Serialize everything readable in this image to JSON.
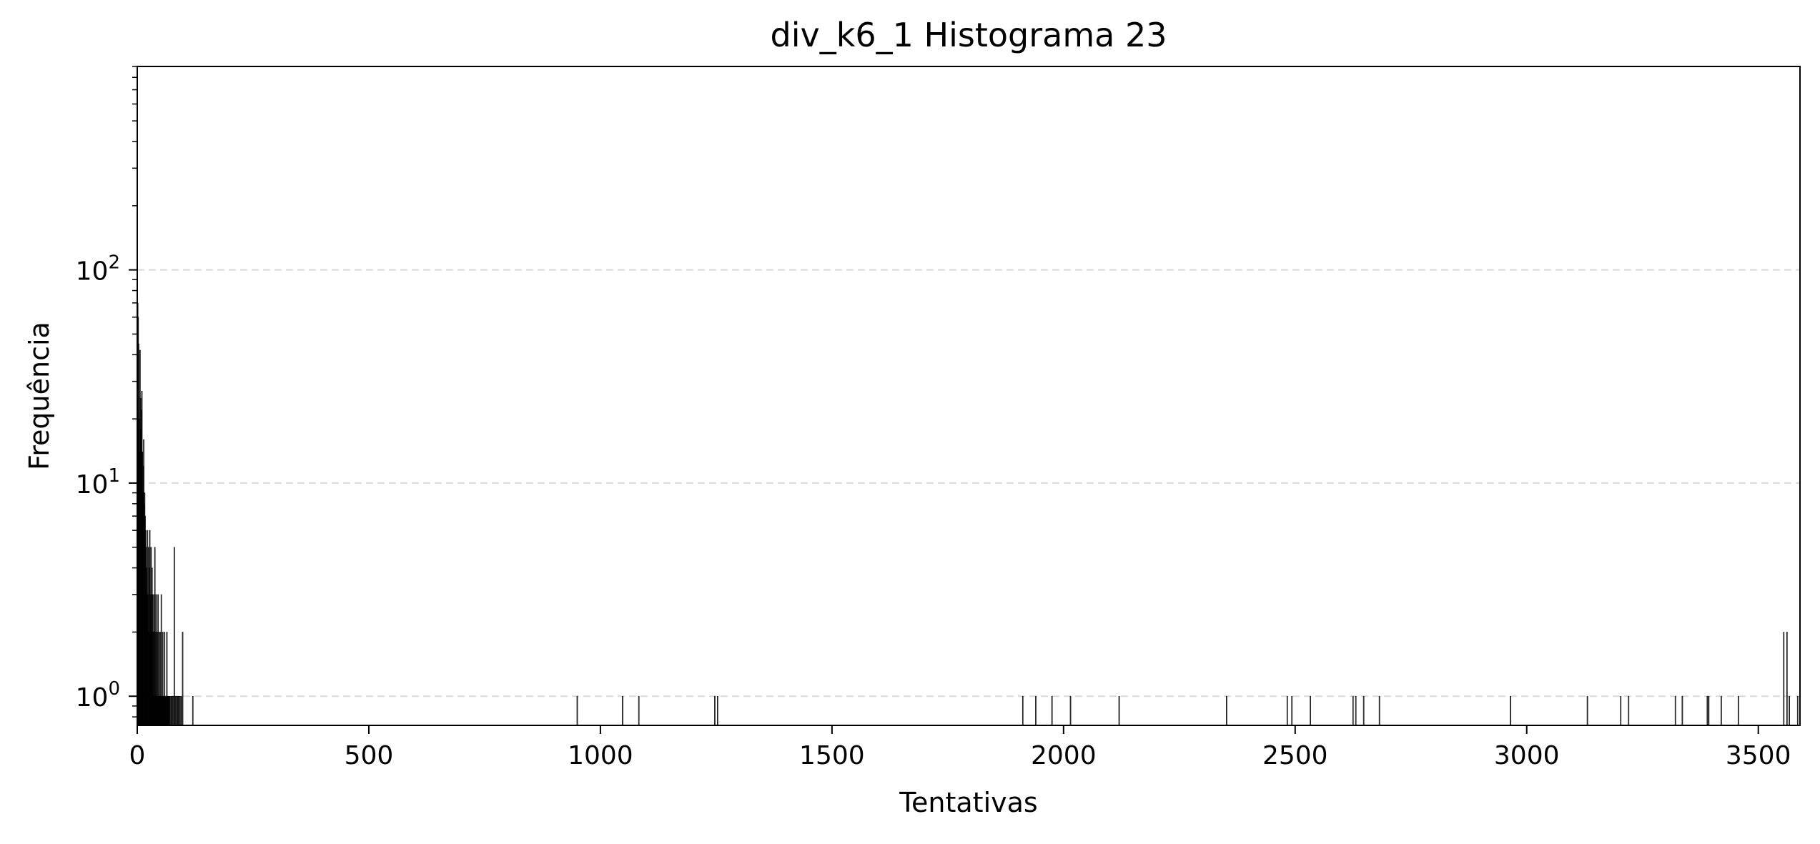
{
  "chart_data": {
    "type": "bar",
    "title": "div_k6_1 Histograma 23",
    "xlabel": "Tentativas",
    "ylabel": "Frequência",
    "xlim": [
      0,
      3590
    ],
    "ylim": [
      0.73,
      900
    ],
    "y_scale": "log",
    "grid": {
      "axis": "y",
      "style": "dashed",
      "color": "#d9d9d9"
    },
    "x_ticks": [
      {
        "value": 0,
        "label": "0"
      },
      {
        "value": 500,
        "label": "500"
      },
      {
        "value": 1000,
        "label": "1000"
      },
      {
        "value": 1500,
        "label": "1500"
      },
      {
        "value": 2000,
        "label": "2000"
      },
      {
        "value": 2500,
        "label": "2500"
      },
      {
        "value": 3000,
        "label": "3000"
      },
      {
        "value": 3500,
        "label": "3500"
      }
    ],
    "y_ticks": [
      {
        "value": 1,
        "base": "10",
        "exp": "0"
      },
      {
        "value": 10,
        "base": "10",
        "exp": "1"
      },
      {
        "value": 100,
        "base": "10",
        "exp": "2"
      }
    ],
    "bar_color": "#000000",
    "bar_width": 1,
    "x": [
      1,
      2,
      3,
      4,
      5,
      6,
      7,
      8,
      9,
      10,
      11,
      12,
      13,
      14,
      15,
      16,
      17,
      18,
      19,
      20,
      21,
      22,
      23,
      24,
      25,
      26,
      27,
      28,
      29,
      30,
      31,
      32,
      33,
      34,
      35,
      36,
      37,
      38,
      39,
      40,
      41,
      42,
      43,
      44,
      45,
      46,
      47,
      48,
      49,
      50,
      51,
      52,
      53,
      54,
      55,
      56,
      57,
      58,
      59,
      60,
      61,
      62,
      63,
      64,
      65,
      66,
      67,
      68,
      69,
      70,
      72,
      74,
      76,
      78,
      80,
      82,
      84,
      86,
      88,
      90,
      92,
      95,
      98,
      120,
      950,
      1048,
      1083,
      1247,
      1253,
      1912,
      1940,
      1975,
      2015,
      2120,
      2352,
      2483,
      2493,
      2533,
      2625,
      2631,
      2648,
      2682,
      2965,
      3131,
      3203,
      3220,
      3321,
      3336,
      3390,
      3393,
      3420,
      3457,
      3555,
      3562,
      3567,
      3585
    ],
    "values": [
      70,
      60,
      45,
      20,
      14,
      42,
      25,
      18,
      22,
      27,
      14,
      9,
      12,
      16,
      8,
      9,
      7,
      6,
      5,
      4,
      3,
      6,
      2,
      5,
      3,
      4,
      6,
      2,
      3,
      5,
      2,
      4,
      3,
      2,
      1,
      3,
      2,
      5,
      1,
      2,
      3,
      1,
      2,
      1,
      3,
      1,
      2,
      1,
      1,
      2,
      1,
      3,
      1,
      1,
      2,
      1,
      1,
      1,
      2,
      1,
      1,
      1,
      1,
      2,
      1,
      1,
      1,
      1,
      1,
      1,
      1,
      1,
      1,
      1,
      5,
      1,
      1,
      1,
      1,
      1,
      1,
      1,
      2,
      1,
      1,
      1,
      1,
      1,
      1,
      1,
      1,
      1,
      1,
      1,
      1,
      1,
      1,
      1,
      1,
      1,
      1,
      1,
      1,
      1,
      1,
      1,
      1,
      1,
      1,
      1,
      1,
      1,
      2,
      2,
      1,
      1
    ]
  }
}
